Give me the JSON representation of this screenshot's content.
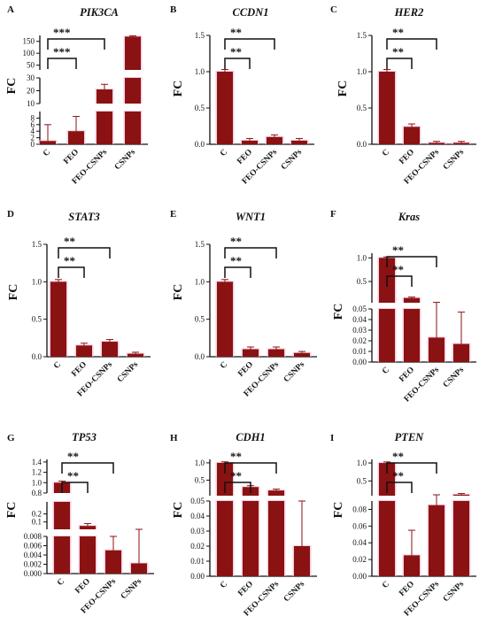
{
  "figure": {
    "bar_color": "#8b1212",
    "glow_color": "#f6b8d6",
    "categories": [
      "C",
      "FEO",
      "FEO-CSNPs",
      "CSNPs"
    ]
  },
  "chart_data": [
    {
      "panel": "A",
      "gene": "PIK3CA",
      "type": "bar",
      "ylabel": "FC",
      "axis": "broken",
      "segments": [
        {
          "range": [
            0,
            10
          ],
          "ticks": [
            "0",
            "2",
            "4",
            "6",
            "8"
          ]
        },
        {
          "range": [
            10,
            30
          ],
          "ticks": [
            "10",
            "20",
            "30"
          ]
        },
        {
          "range": [
            30,
            175
          ],
          "ticks": [
            "50",
            "100",
            "150"
          ]
        }
      ],
      "categories": [
        "C",
        "FEO",
        "FEO-CSNPs",
        "CSNPs"
      ],
      "values": [
        1.0,
        4.0,
        21.0,
        170.0
      ],
      "errors": [
        5.0,
        4.5,
        4.0,
        3.0
      ],
      "significance": [
        {
          "from": "C",
          "to": "FEO",
          "label": "***"
        },
        {
          "from": "C",
          "to": "FEO-CSNPs",
          "label": "***"
        }
      ]
    },
    {
      "panel": "B",
      "gene": "CCDN1",
      "type": "bar",
      "ylabel": "FC",
      "axis": "linear",
      "ylim": [
        0,
        1.5
      ],
      "ticks": [
        "0.0",
        "0.5",
        "1.0",
        "1.5"
      ],
      "categories": [
        "C",
        "FEO",
        "FEO-CSNPs",
        "CSNPs"
      ],
      "values": [
        1.0,
        0.05,
        0.1,
        0.05
      ],
      "errors": [
        0.03,
        0.03,
        0.03,
        0.03
      ],
      "significance": [
        {
          "from": "C",
          "to": "FEO",
          "label": "**"
        },
        {
          "from": "C",
          "to": "FEO-CSNPs",
          "label": "**"
        }
      ]
    },
    {
      "panel": "C",
      "gene": "HER2",
      "type": "bar",
      "ylabel": "FC",
      "axis": "linear",
      "ylim": [
        0,
        1.5
      ],
      "ticks": [
        "0.0",
        "0.5",
        "1.0",
        "1.5"
      ],
      "categories": [
        "C",
        "FEO",
        "FEO-CSNPs",
        "CSNPs"
      ],
      "values": [
        1.0,
        0.24,
        0.02,
        0.02
      ],
      "errors": [
        0.03,
        0.04,
        0.02,
        0.02
      ],
      "significance": [
        {
          "from": "C",
          "to": "FEO",
          "label": "**"
        },
        {
          "from": "C",
          "to": "FEO-CSNPs",
          "label": "**"
        }
      ]
    },
    {
      "panel": "D",
      "gene": "STAT3",
      "type": "bar",
      "ylabel": "FC",
      "axis": "linear",
      "ylim": [
        0,
        1.5
      ],
      "ticks": [
        "0.0",
        "0.5",
        "1.0",
        "1.5"
      ],
      "categories": [
        "C",
        "FEO",
        "FEO-CSNPs",
        "CSNPs"
      ],
      "values": [
        1.0,
        0.15,
        0.2,
        0.04
      ],
      "errors": [
        0.03,
        0.03,
        0.03,
        0.02
      ],
      "significance": [
        {
          "from": "C",
          "to": "FEO",
          "label": "**"
        },
        {
          "from": "C",
          "to": "FEO-CSNPs",
          "label": "**"
        }
      ]
    },
    {
      "panel": "E",
      "gene": "WNT1",
      "type": "bar",
      "ylabel": "FC",
      "axis": "linear",
      "ylim": [
        0,
        1.5
      ],
      "ticks": [
        "0.0",
        "0.5",
        "1.0",
        "1.5"
      ],
      "categories": [
        "C",
        "FEO",
        "FEO-CSNPs",
        "CSNPs"
      ],
      "values": [
        1.0,
        0.1,
        0.1,
        0.05
      ],
      "errors": [
        0.03,
        0.03,
        0.03,
        0.02
      ],
      "significance": [
        {
          "from": "C",
          "to": "FEO",
          "label": "**"
        },
        {
          "from": "C",
          "to": "FEO-CSNPs",
          "label": "**"
        }
      ]
    },
    {
      "panel": "F",
      "gene": "Kras",
      "type": "bar",
      "ylabel": "FC",
      "axis": "broken",
      "segments": [
        {
          "range": [
            0,
            0.05
          ],
          "ticks": [
            "0.00",
            "0.01",
            "0.02",
            "0.03",
            "0.04",
            "0.05"
          ]
        },
        {
          "range": [
            0.05,
            1.1
          ],
          "ticks": [
            "0.5",
            "1.0"
          ]
        }
      ],
      "categories": [
        "C",
        "FEO",
        "FEO-CSNPs",
        "CSNPs"
      ],
      "values": [
        1.0,
        0.15,
        0.023,
        0.017
      ],
      "errors": [
        0.02,
        0.02,
        0.035,
        0.03
      ],
      "significance": [
        {
          "from": "C",
          "to": "FEO",
          "label": "**"
        },
        {
          "from": "C",
          "to": "FEO-CSNPs",
          "label": "**"
        }
      ]
    },
    {
      "panel": "G",
      "gene": "TP53",
      "type": "bar",
      "ylabel": "FC",
      "axis": "broken",
      "segments": [
        {
          "range": [
            0,
            0.008
          ],
          "ticks": [
            "0.000",
            "0.002",
            "0.004",
            "0.006",
            "0.008"
          ]
        },
        {
          "range": [
            0.008,
            0.35
          ],
          "ticks": [
            "0.1",
            "0.2"
          ]
        },
        {
          "range": [
            0.8,
            1.45
          ],
          "ticks": [
            "0.8",
            "1.0",
            "1.2",
            "1.4"
          ]
        }
      ],
      "categories": [
        "C",
        "FEO",
        "FEO-CSNPs",
        "CSNPs"
      ],
      "values": [
        1.0,
        0.05,
        0.005,
        0.0022
      ],
      "errors": [
        0.03,
        0.03,
        0.003,
        0.006
      ],
      "significance": [
        {
          "from": "C",
          "to": "FEO",
          "label": "**"
        },
        {
          "from": "C",
          "to": "FEO-CSNPs",
          "label": "**"
        }
      ]
    },
    {
      "panel": "H",
      "gene": "CDH1",
      "type": "bar",
      "ylabel": "FC",
      "axis": "broken",
      "segments": [
        {
          "range": [
            0,
            0.05
          ],
          "ticks": [
            "0.00",
            "0.01",
            "0.02",
            "0.03",
            "0.04",
            "0.05"
          ]
        },
        {
          "range": [
            0.05,
            1.1
          ],
          "ticks": [
            "0.5",
            "1.0"
          ]
        }
      ],
      "categories": [
        "C",
        "FEO",
        "FEO-CSNPs",
        "CSNPs"
      ],
      "values": [
        1.0,
        0.3,
        0.2,
        0.02
      ],
      "errors": [
        0.03,
        0.04,
        0.04,
        0.03
      ],
      "significance": [
        {
          "from": "C",
          "to": "FEO",
          "label": "**"
        },
        {
          "from": "C",
          "to": "FEO-CSNPs",
          "label": "**"
        }
      ]
    },
    {
      "panel": "I",
      "gene": "PTEN",
      "type": "bar",
      "ylabel": "FC",
      "axis": "broken",
      "segments": [
        {
          "range": [
            0,
            0.09
          ],
          "ticks": [
            "0.00",
            "0.02",
            "0.04",
            "0.06",
            "0.08"
          ]
        },
        {
          "range": [
            0.09,
            1.1
          ],
          "ticks": [
            "0.5",
            "1.0"
          ]
        }
      ],
      "categories": [
        "C",
        "FEO",
        "FEO-CSNPs",
        "CSNPs"
      ],
      "values": [
        1.0,
        0.025,
        0.085,
        0.12
      ],
      "errors": [
        0.03,
        0.03,
        0.03,
        0.03
      ],
      "significance": [
        {
          "from": "C",
          "to": "FEO",
          "label": "**"
        },
        {
          "from": "C",
          "to": "FEO-CSNPs",
          "label": "**"
        }
      ]
    }
  ]
}
